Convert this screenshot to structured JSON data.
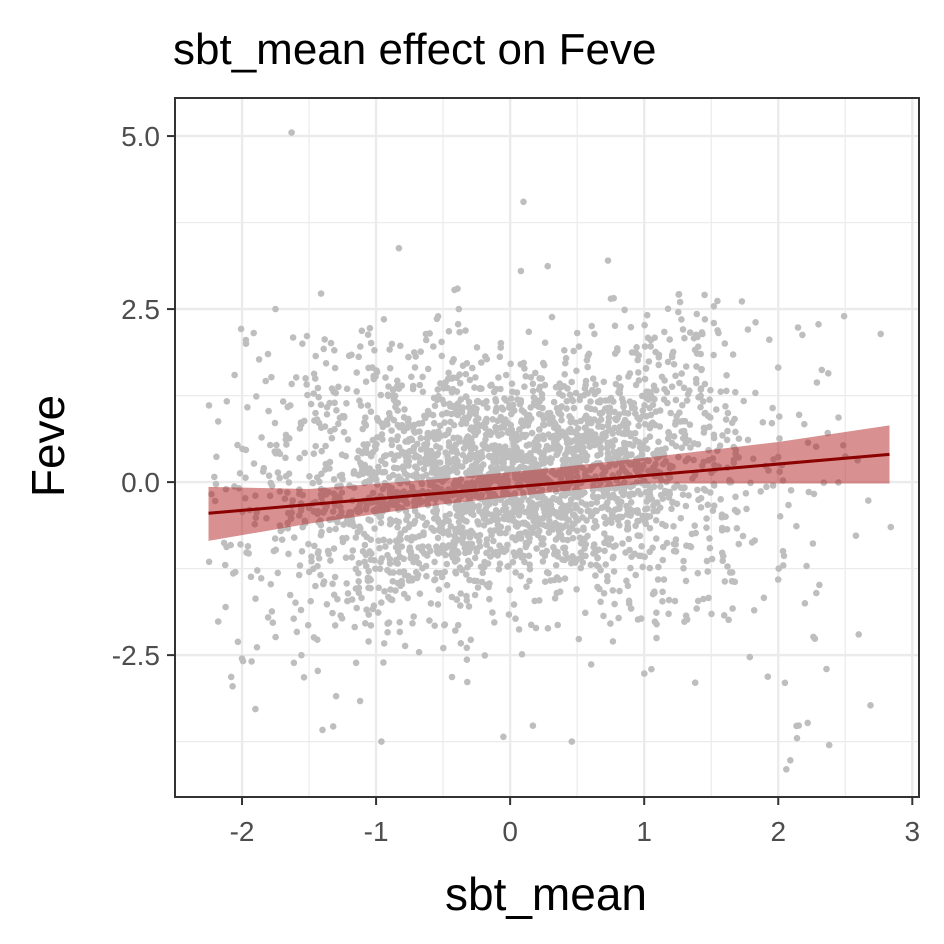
{
  "chart_data": {
    "type": "scatter",
    "title": "sbt_mean effect on Feve",
    "xlabel": "sbt_mean",
    "ylabel": "Feve",
    "xlim": [
      -2.5,
      3.05
    ],
    "ylim": [
      -4.55,
      5.55
    ],
    "x_ticks": [
      -2,
      -1,
      0,
      1,
      2,
      3
    ],
    "x_tick_labels": [
      "-2",
      "-1",
      "0",
      "1",
      "2",
      "3"
    ],
    "y_ticks": [
      -2.5,
      0,
      2.5,
      5
    ],
    "y_tick_labels": [
      "-2.5",
      "0.0",
      "2.5",
      "5.0"
    ],
    "grid": true,
    "legend": "none",
    "colors": {
      "points": "#bebebe",
      "fit_line": "#8b0000",
      "confidence_band": "#b22222",
      "panel_border": "#333333",
      "grid": "#ebebeb"
    },
    "points_summary": {
      "approx_count": 3000,
      "x_range": [
        -2.25,
        2.85
      ],
      "y_center_sd": 0.8
    },
    "outliers": [
      {
        "x": -1.63,
        "y": 5.05
      },
      {
        "x": 0.1,
        "y": 4.05
      },
      {
        "x": -0.83,
        "y": 3.38
      },
      {
        "x": 0.73,
        "y": 3.2
      },
      {
        "x": 0.28,
        "y": 3.12
      },
      {
        "x": 0.08,
        "y": 3.05
      },
      {
        "x": -1.75,
        "y": 2.5
      },
      {
        "x": -1.55,
        "y": 2.0
      },
      {
        "x": -1.97,
        "y": 2.0
      },
      {
        "x": 2.3,
        "y": 2.28
      },
      {
        "x": -2.0,
        "y": -2.55
      },
      {
        "x": -2.07,
        "y": -2.95
      },
      {
        "x": -1.9,
        "y": -3.28
      },
      {
        "x": -1.4,
        "y": -3.58
      },
      {
        "x": -1.32,
        "y": -3.53
      },
      {
        "x": -0.96,
        "y": -3.75
      },
      {
        "x": -0.05,
        "y": -3.68
      },
      {
        "x": 0.17,
        "y": -3.52
      },
      {
        "x": 0.46,
        "y": -3.75
      },
      {
        "x": 2.06,
        "y": -4.15
      },
      {
        "x": 2.09,
        "y": -4.02
      },
      {
        "x": 2.14,
        "y": -3.7
      },
      {
        "x": 2.38,
        "y": -3.8
      },
      {
        "x": 2.22,
        "y": -3.48
      },
      {
        "x": 2.84,
        "y": -0.65
      },
      {
        "x": 2.05,
        "y": -2.9
      },
      {
        "x": 2.36,
        "y": -2.7
      },
      {
        "x": 2.6,
        "y": -2.2
      }
    ],
    "fit_line": {
      "x": [
        -2.25,
        2.83
      ],
      "y": [
        -0.45,
        0.4
      ]
    },
    "confidence_band": {
      "x": [
        -2.25,
        -1.5,
        -0.5,
        0.3,
        1.0,
        2.0,
        2.83
      ],
      "lower": [
        -0.85,
        -0.6,
        -0.32,
        -0.15,
        -0.02,
        -0.02,
        -0.02
      ],
      "upper": [
        -0.07,
        -0.1,
        0.05,
        0.2,
        0.35,
        0.58,
        0.82
      ]
    }
  }
}
